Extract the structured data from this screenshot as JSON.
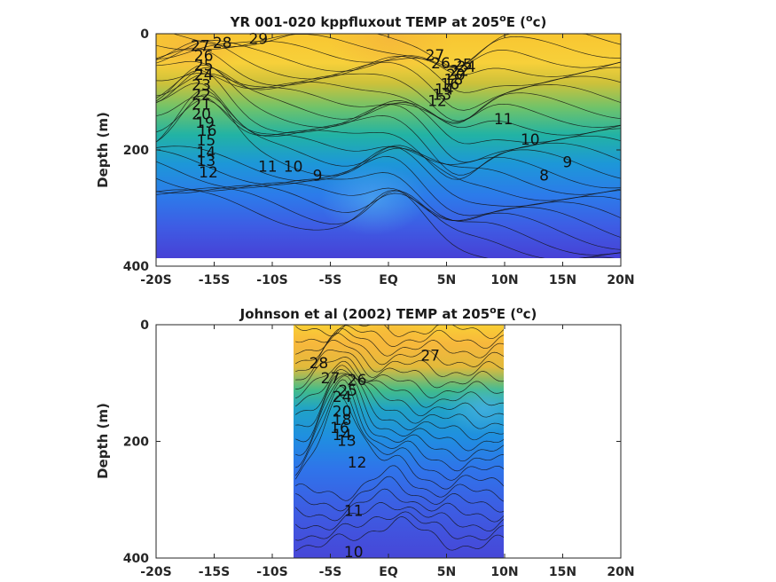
{
  "chart_data": [
    {
      "type": "heatmap",
      "subtype": "filled-contour",
      "title": "YR 001-020 kppfluxout TEMP at 205",
      "title_superscript": "o",
      "title_tail": "E (",
      "title_unit_super": "o",
      "title_unit": "c)",
      "ylabel": "Depth (m)",
      "xlim": [
        -20,
        20
      ],
      "ylim": [
        400,
        0
      ],
      "y_reversed": true,
      "x_ticks": [
        -20,
        -15,
        -10,
        -5,
        0,
        5,
        10,
        15,
        20
      ],
      "x_tick_labels": [
        "-20S",
        "-15S",
        "-10S",
        "-5S",
        "EQ",
        "5N",
        "10N",
        "15N",
        "20N"
      ],
      "y_ticks": [
        0,
        200,
        400
      ],
      "y_tick_labels": [
        "0",
        "200",
        "400"
      ],
      "data_extent_x": [
        -20,
        20
      ],
      "data_extent_y": [
        0,
        385
      ],
      "colormap": "parula",
      "contour_interval": 1,
      "contour_range": [
        8,
        29
      ],
      "contour_labels": [
        {
          "value": 29,
          "text": "29",
          "lat": -11.2,
          "depth": 10
        },
        {
          "value": 28,
          "text": "28",
          "lat": -14.3,
          "depth": 17
        },
        {
          "value": 27,
          "text": "27",
          "lat": -16.2,
          "depth": 22
        },
        {
          "value": 26,
          "text": "26",
          "lat": -15.9,
          "depth": 39
        },
        {
          "value": 25,
          "text": "25",
          "lat": -15.9,
          "depth": 56
        },
        {
          "value": 24,
          "text": "24",
          "lat": -15.9,
          "depth": 72
        },
        {
          "value": 23,
          "text": "23",
          "lat": -16.1,
          "depth": 89
        },
        {
          "value": 22,
          "text": "22",
          "lat": -16.1,
          "depth": 106
        },
        {
          "value": 21,
          "text": "21",
          "lat": -16.1,
          "depth": 123
        },
        {
          "value": 20,
          "text": "20",
          "lat": -16.1,
          "depth": 140
        },
        {
          "value": 19,
          "text": "19",
          "lat": -15.8,
          "depth": 154
        },
        {
          "value": 16,
          "text": "16",
          "lat": -15.6,
          "depth": 168
        },
        {
          "value": 15,
          "text": "15",
          "lat": -15.7,
          "depth": 185
        },
        {
          "value": 14,
          "text": "14",
          "lat": -15.7,
          "depth": 205
        },
        {
          "value": 13,
          "text": "13",
          "lat": -15.7,
          "depth": 220
        },
        {
          "value": 12,
          "text": "12",
          "lat": -15.5,
          "depth": 240
        },
        {
          "value": 11,
          "text": "11",
          "lat": -10.4,
          "depth": 230
        },
        {
          "value": 10,
          "text": "10",
          "lat": -8.2,
          "depth": 230
        },
        {
          "value": 9,
          "text": "9",
          "lat": -6.1,
          "depth": 245
        },
        {
          "value": 27,
          "text": "27",
          "lat": 4,
          "depth": 38
        },
        {
          "value": 26,
          "text": "26",
          "lat": 4.5,
          "depth": 52
        },
        {
          "value": 25,
          "text": "25",
          "lat": 6.4,
          "depth": 54
        },
        {
          "value": 24,
          "text": "24",
          "lat": 6.7,
          "depth": 58
        },
        {
          "value": 22,
          "text": "22",
          "lat": 6.1,
          "depth": 65
        },
        {
          "value": 20,
          "text": "20",
          "lat": 5.8,
          "depth": 72
        },
        {
          "value": 18,
          "text": "18",
          "lat": 5.6,
          "depth": 80
        },
        {
          "value": 16,
          "text": "16",
          "lat": 5.3,
          "depth": 88
        },
        {
          "value": 14,
          "text": "14",
          "lat": 4.8,
          "depth": 97
        },
        {
          "value": 13,
          "text": "13",
          "lat": 4.6,
          "depth": 106
        },
        {
          "value": 12,
          "text": "12",
          "lat": 4.2,
          "depth": 117
        },
        {
          "value": 11,
          "text": "11",
          "lat": 9.9,
          "depth": 148
        },
        {
          "value": 10,
          "text": "10",
          "lat": 12.2,
          "depth": 183
        },
        {
          "value": 9,
          "text": "9",
          "lat": 15.4,
          "depth": 222
        },
        {
          "value": 8,
          "text": "8",
          "lat": 13.4,
          "depth": 245
        }
      ]
    },
    {
      "type": "heatmap",
      "subtype": "filled-contour",
      "title": "Johnson et al (2002) TEMP at 205",
      "title_superscript": "o",
      "title_tail": "E (",
      "title_unit_super": "o",
      "title_unit": "c)",
      "ylabel": "Depth (m)",
      "xlim": [
        -20,
        20
      ],
      "ylim": [
        400,
        0
      ],
      "y_reversed": true,
      "x_ticks": [
        -20,
        -15,
        -10,
        -5,
        0,
        5,
        10,
        15,
        20
      ],
      "x_tick_labels": [
        "-20S",
        "-15S",
        "-10S",
        "-5S",
        "EQ",
        "5N",
        "10N",
        "15N",
        "20N"
      ],
      "y_ticks": [
        0,
        200,
        400
      ],
      "y_tick_labels": [
        "0",
        "200",
        "400"
      ],
      "data_extent_x": [
        -8,
        10
      ],
      "data_extent_y": [
        0,
        400
      ],
      "colormap": "parula",
      "contour_interval": 1,
      "contour_range": [
        9,
        28
      ],
      "contour_labels": [
        {
          "value": 28,
          "text": "28",
          "lat": -6,
          "depth": 67
        },
        {
          "value": 27,
          "text": "27",
          "lat": -5,
          "depth": 93
        },
        {
          "value": 26,
          "text": "26",
          "lat": -2.7,
          "depth": 96
        },
        {
          "value": 27,
          "text": "27",
          "lat": 3.6,
          "depth": 54
        },
        {
          "value": 25,
          "text": "25",
          "lat": -3.5,
          "depth": 114
        },
        {
          "value": 24,
          "text": "24",
          "lat": -4,
          "depth": 125
        },
        {
          "value": 20,
          "text": "20",
          "lat": -4,
          "depth": 150
        },
        {
          "value": 18,
          "text": "18",
          "lat": -4,
          "depth": 164
        },
        {
          "value": 16,
          "text": "16",
          "lat": -4.2,
          "depth": 178
        },
        {
          "value": 14,
          "text": "14",
          "lat": -4,
          "depth": 190
        },
        {
          "value": 13,
          "text": "13",
          "lat": -3.6,
          "depth": 200
        },
        {
          "value": 12,
          "text": "12",
          "lat": -2.7,
          "depth": 237
        },
        {
          "value": 11,
          "text": "11",
          "lat": -3,
          "depth": 320
        },
        {
          "value": 10,
          "text": "10",
          "lat": -3,
          "depth": 391
        }
      ]
    }
  ]
}
